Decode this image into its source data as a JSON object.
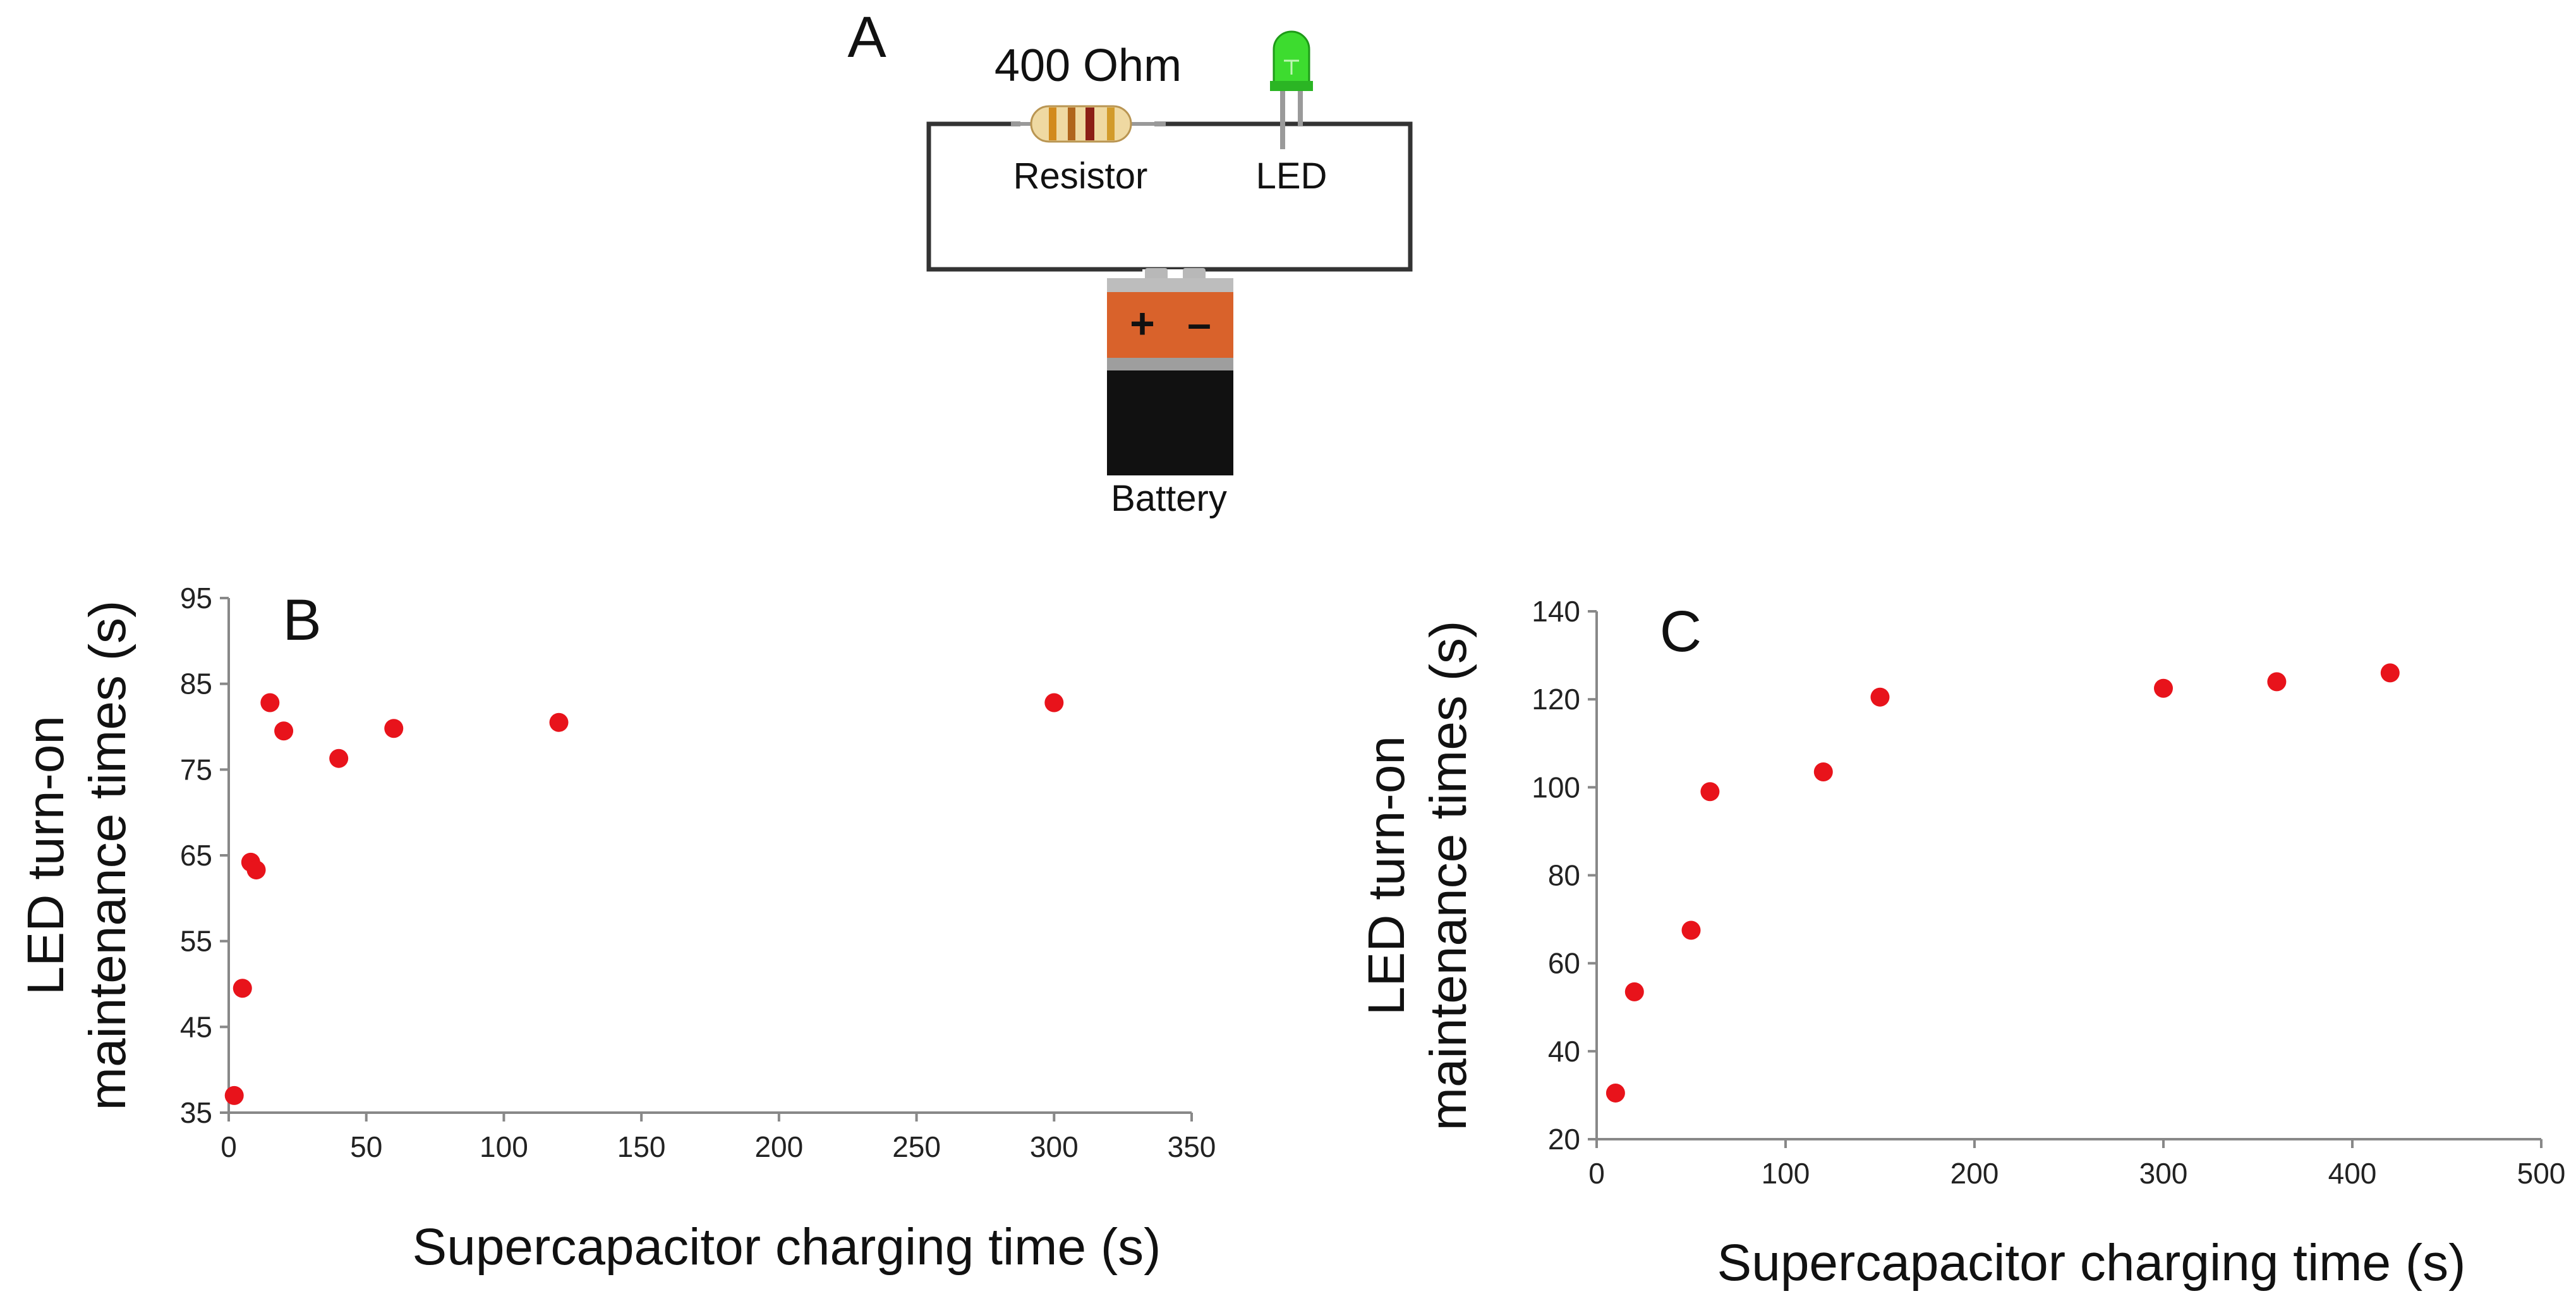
{
  "circuit": {
    "panel_label": "A",
    "resistance_label": "400 Ohm",
    "resistor_label": "Resistor",
    "led_label": "LED",
    "battery_label": "Battery",
    "battery_plus": "+",
    "battery_minus": "–",
    "colors": {
      "led": "#3ddc2f",
      "battery_top": "#d9622b",
      "battery_body": "#111111",
      "wire": "#333333"
    }
  },
  "chart_data": [
    {
      "panel_label": "B",
      "type": "scatter",
      "title": "",
      "xlabel": "Supercapacitor  charging time (s)",
      "ylabel_lines": [
        "LED turn-on",
        "maintenance times (s)"
      ],
      "xlim": [
        0,
        350
      ],
      "ylim": [
        35,
        95
      ],
      "xticks": [
        0,
        50,
        100,
        150,
        200,
        250,
        300,
        350
      ],
      "yticks": [
        35,
        45,
        55,
        65,
        75,
        85,
        95
      ],
      "grid": false,
      "marker_color": "#e8131b",
      "series": [
        {
          "name": "LED turn-on maintenance time",
          "x": [
            2,
            5,
            8,
            10,
            15,
            20,
            40,
            60,
            120,
            300
          ],
          "y": [
            37,
            49.5,
            64.2,
            63.3,
            82.8,
            79.5,
            76.3,
            79.8,
            80.5,
            82.8
          ]
        }
      ]
    },
    {
      "panel_label": "C",
      "type": "scatter",
      "title": "",
      "xlabel": "Supercapacitor  charging time (s)",
      "ylabel_lines": [
        "LED turn-on",
        "maintenance times (s)"
      ],
      "xlim": [
        0,
        500
      ],
      "ylim": [
        20,
        140
      ],
      "xticks": [
        0,
        100,
        200,
        300,
        400,
        500
      ],
      "yticks": [
        20,
        40,
        60,
        80,
        100,
        120,
        140
      ],
      "grid": false,
      "marker_color": "#e8131b",
      "series": [
        {
          "name": "LED turn-on maintenance time",
          "x": [
            10,
            20,
            50,
            60,
            120,
            150,
            300,
            360,
            420
          ],
          "y": [
            30.5,
            53.5,
            67.5,
            99,
            103.5,
            120.5,
            122.5,
            124,
            126
          ]
        }
      ]
    }
  ]
}
